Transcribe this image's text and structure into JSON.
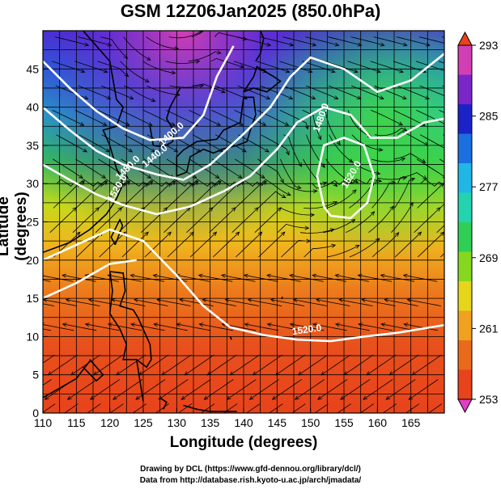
{
  "title": "GSM 12Z06Jan2025 (850.0hPa)",
  "x_axis": {
    "label": "Longitude (degrees)",
    "range": [
      110,
      170
    ],
    "ticks": [
      "110",
      "115",
      "120",
      "125",
      "130",
      "135",
      "140",
      "145",
      "150",
      "155",
      "160",
      "165"
    ]
  },
  "y_axis": {
    "label": "Latitude  (degrees)",
    "range": [
      0,
      50
    ],
    "ticks": [
      "0",
      "5",
      "10",
      "15",
      "20",
      "25",
      "30",
      "35",
      "40",
      "45"
    ]
  },
  "colorbar": {
    "range": [
      253,
      293
    ],
    "labels": [
      "293",
      "285",
      "277",
      "269",
      "261",
      "253"
    ],
    "colors": [
      "#d23fb4",
      "#7a26c8",
      "#1a22c8",
      "#1b6fe0",
      "#1fb7e6",
      "#24d3b0",
      "#2fcf55",
      "#86d81e",
      "#e6d61a",
      "#f0a21e",
      "#ea6a1c",
      "#e8431c"
    ]
  },
  "contours": [
    {
      "label": "1400.0"
    },
    {
      "label": "1440.0"
    },
    {
      "label": "1480.0"
    },
    {
      "label": "1520.0"
    },
    {
      "label": "1520.0"
    },
    {
      "label": "1480.0"
    },
    {
      "label": "1520.0"
    }
  ],
  "credits": {
    "line1": "Drawing by DCL (https://www.gfd-dennou.org/library/dcl/)",
    "line2": "Data from http://database.rish.kyoto-u.ac.jp/arch/jmadata/"
  }
}
